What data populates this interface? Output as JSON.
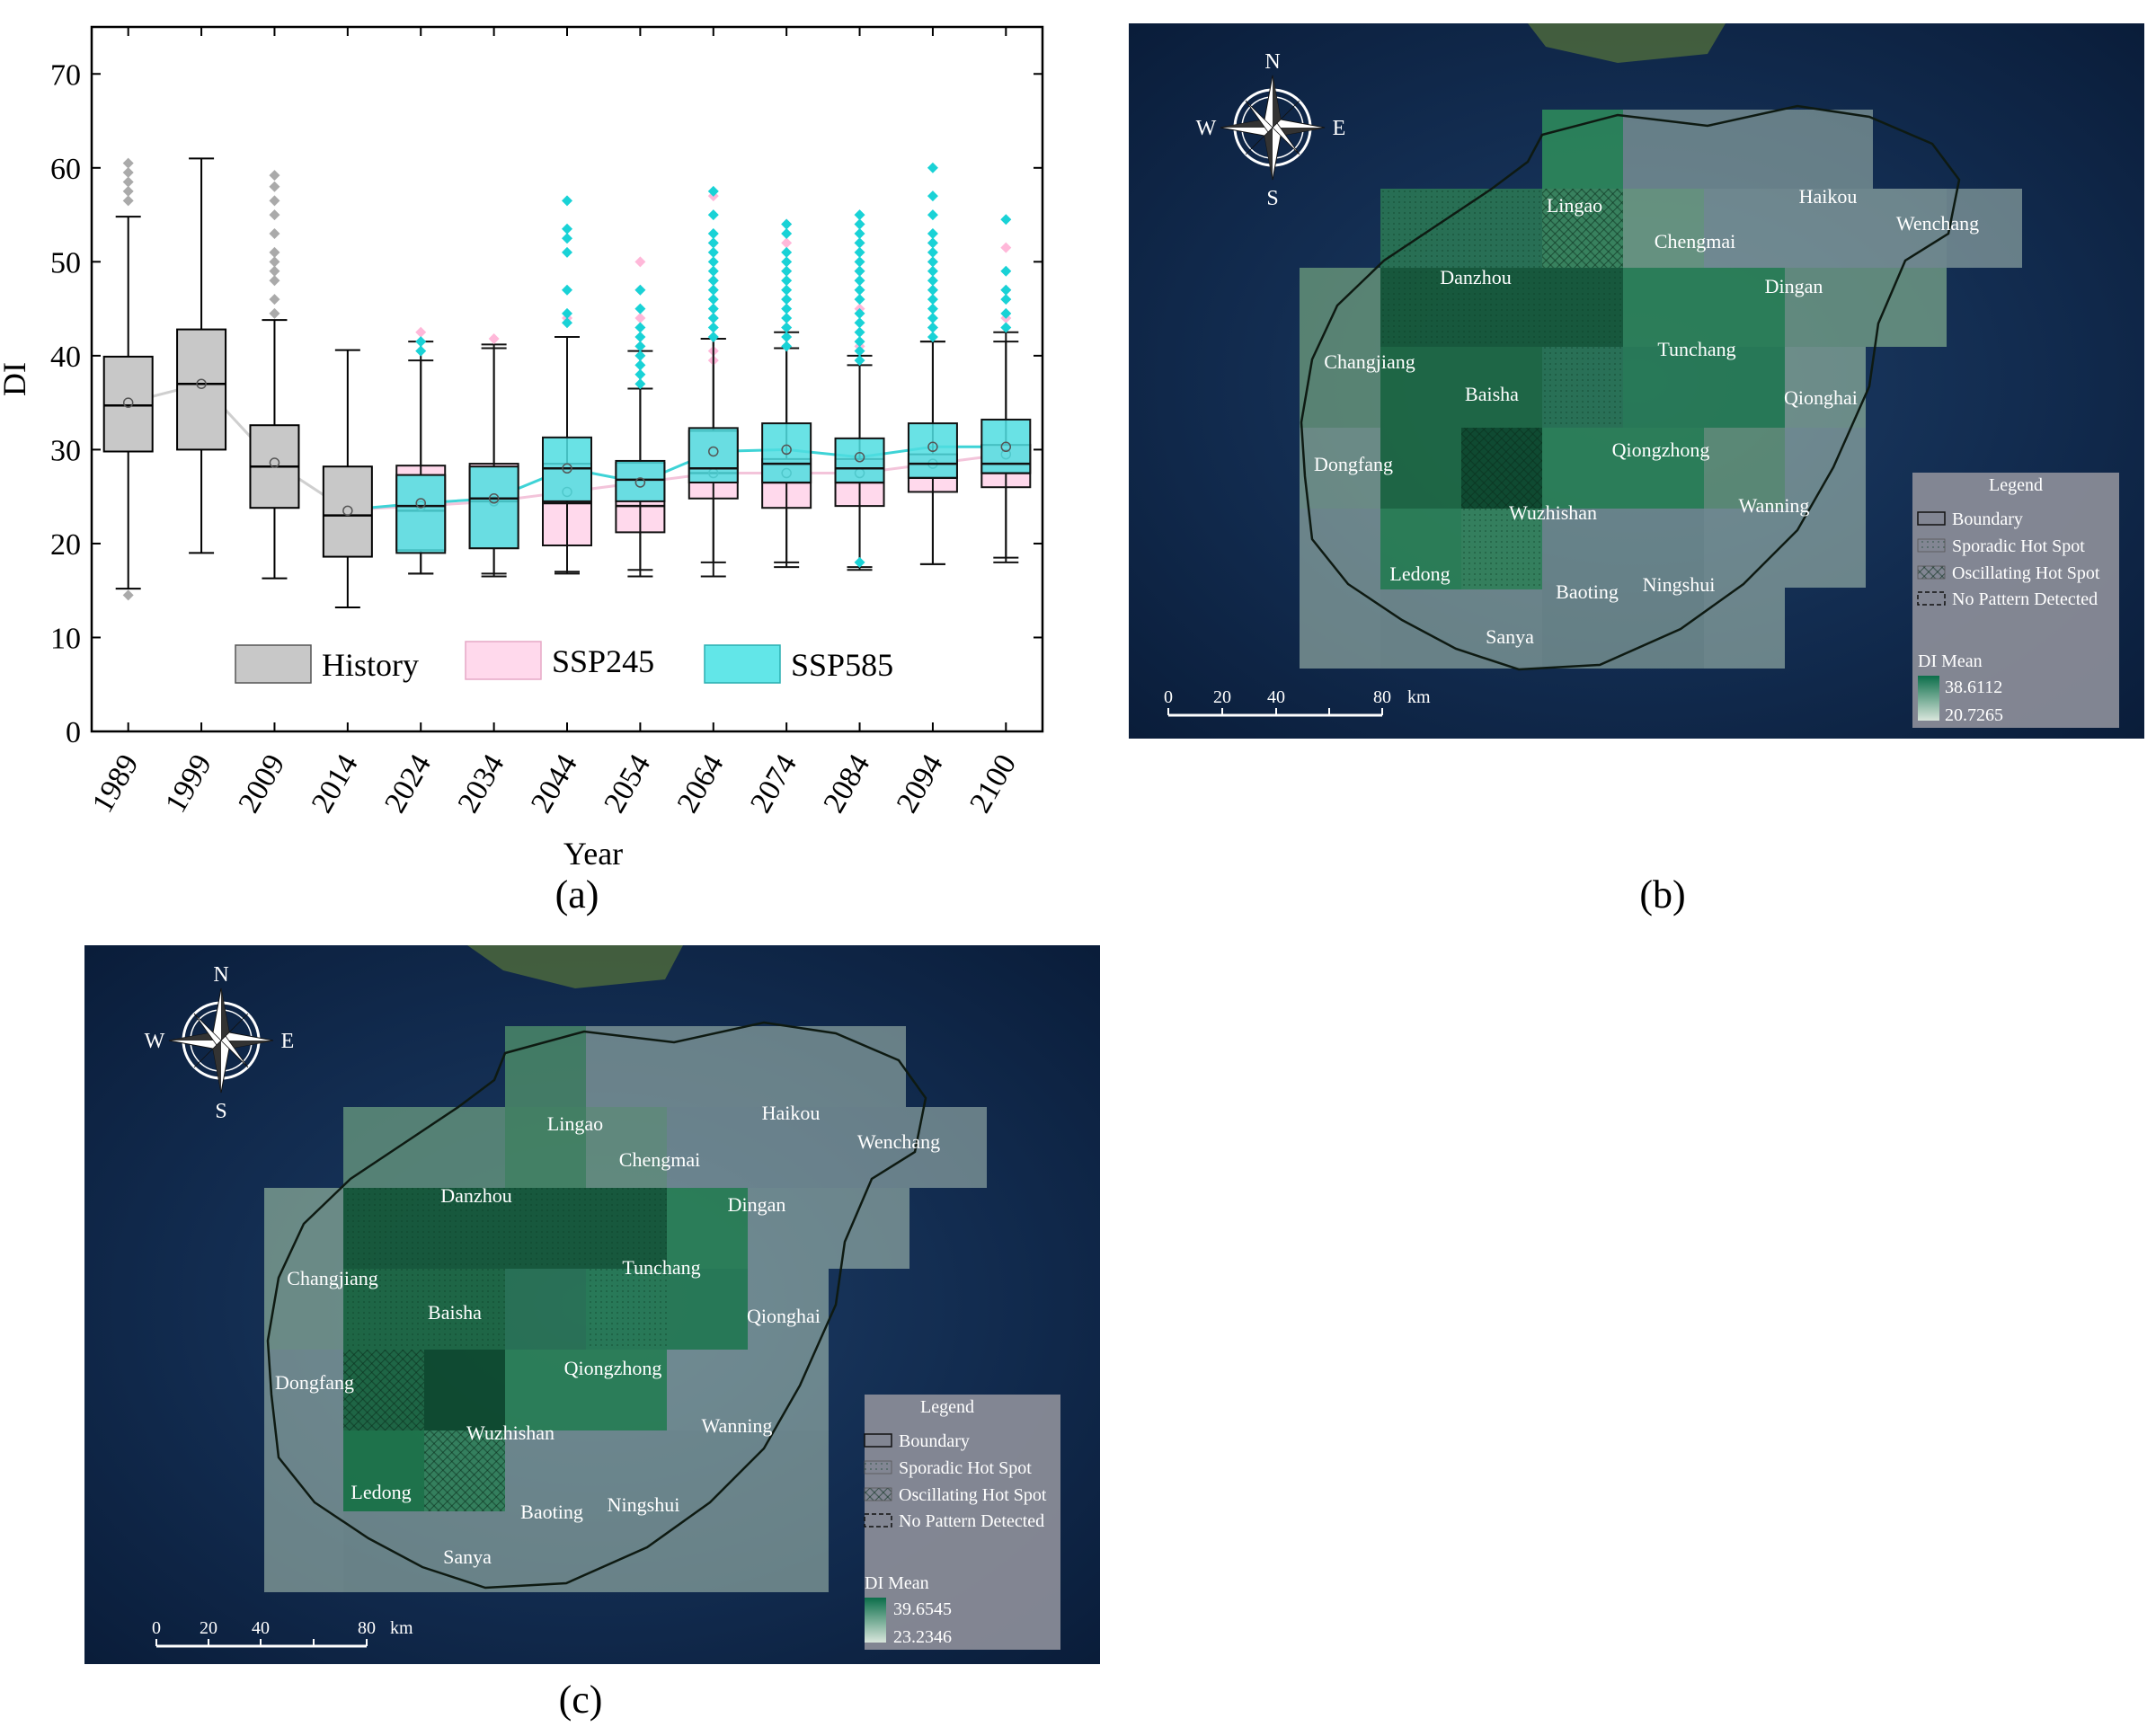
{
  "panel_labels": {
    "a": "(a)",
    "b": "(b)",
    "c": "(c)"
  },
  "chart_data": {
    "type": "box",
    "title": "",
    "xlabel": "Year",
    "ylabel": "DI",
    "ylim": [
      0,
      75
    ],
    "yticks": [
      0,
      10,
      20,
      30,
      40,
      50,
      60,
      70
    ],
    "categories": [
      "1989",
      "1999",
      "2009",
      "2014",
      "2024",
      "2034",
      "2044",
      "2054",
      "2064",
      "2074",
      "2084",
      "2094",
      "2100"
    ],
    "legend": {
      "position": "bottom-inside",
      "items": [
        "History",
        "SSP245",
        "SSP585"
      ]
    },
    "colors": {
      "History": "#c8c8c8",
      "SSP245": "#ffd9ec",
      "SSP585": "#4fdde0",
      "SSP585_line": "#3ed3d6",
      "History_line": "#cfcfcf"
    },
    "series": [
      {
        "name": "History",
        "boxes": [
          {
            "year": "1989",
            "whisker_low": 15.2,
            "q1": 29.8,
            "median": 34.7,
            "q3": 39.9,
            "whisker_high": 54.8,
            "mean": 35.0,
            "outliers": [
              14.5,
              56.5,
              57.5,
              58.5,
              59.5,
              60.5
            ]
          },
          {
            "year": "1999",
            "whisker_low": 19.0,
            "q1": 30.0,
            "median": 37.0,
            "q3": 42.8,
            "whisker_high": 61.0,
            "mean": 37.0,
            "outliers": []
          },
          {
            "year": "2009",
            "whisker_low": 16.3,
            "q1": 23.8,
            "median": 28.2,
            "q3": 32.6,
            "whisker_high": 43.8,
            "mean": 28.6,
            "outliers": [
              44.5,
              46,
              48,
              49,
              50,
              51,
              53,
              55,
              56.5,
              58,
              59.2
            ]
          },
          {
            "year": "2014",
            "whisker_low": 13.2,
            "q1": 18.6,
            "median": 23.0,
            "q3": 28.2,
            "whisker_high": 40.6,
            "mean": 23.5,
            "outliers": []
          }
        ]
      },
      {
        "name": "SSP245",
        "boxes": [
          {
            "year": "2024",
            "whisker_low": 16.8,
            "q1": 19.3,
            "median": 23.5,
            "q3": 28.3,
            "whisker_high": 41.5,
            "mean": 24.0,
            "outliers": [
              42.5
            ]
          },
          {
            "year": "2034",
            "whisker_low": 16.8,
            "q1": 19.5,
            "median": 24.5,
            "q3": 28.5,
            "whisker_high": 41.2,
            "mean": 24.5,
            "outliers": [
              41.8
            ]
          },
          {
            "year": "2044",
            "whisker_low": 17.0,
            "q1": 19.8,
            "median": 24.3,
            "q3": 28.5,
            "whisker_high": 42.0,
            "mean": 25.5,
            "outliers": [
              44
            ]
          },
          {
            "year": "2054",
            "whisker_low": 17.2,
            "q1": 21.2,
            "median": 24.0,
            "q3": 28.6,
            "whisker_high": 40.5,
            "mean": 26.5,
            "outliers": [
              41,
              44,
              47,
              50
            ]
          },
          {
            "year": "2064",
            "whisker_low": 18.0,
            "q1": 24.8,
            "median": 27.5,
            "q3": 32.0,
            "whisker_high": 41.8,
            "mean": 27.5,
            "outliers": [
              39.5,
              40.5,
              44,
              48,
              52,
              57
            ]
          },
          {
            "year": "2074",
            "whisker_low": 18.0,
            "q1": 23.8,
            "median": 26.5,
            "q3": 29.0,
            "whisker_high": 42.5,
            "mean": 27.5,
            "outliers": [
              43,
              46,
              49,
              52,
              54
            ]
          },
          {
            "year": "2084",
            "whisker_low": 17.5,
            "q1": 24.0,
            "median": 26.5,
            "q3": 29.0,
            "whisker_high": 40.0,
            "mean": 27.5,
            "outliers": [
              41,
              45,
              49,
              52,
              54
            ]
          },
          {
            "year": "2094",
            "whisker_low": 17.8,
            "q1": 25.5,
            "median": 27.0,
            "q3": 29.5,
            "whisker_high": 41.5,
            "mean": 28.5,
            "outliers": [
              43,
              47,
              50,
              52
            ]
          },
          {
            "year": "2100",
            "whisker_low": 18.5,
            "q1": 26.0,
            "median": 27.5,
            "q3": 30.5,
            "whisker_high": 42.5,
            "mean": 29.5,
            "outliers": [
              44,
              47,
              51.5
            ]
          }
        ]
      },
      {
        "name": "SSP585",
        "boxes": [
          {
            "year": "2024",
            "whisker_low": 16.8,
            "q1": 19.0,
            "median": 24.0,
            "q3": 27.3,
            "whisker_high": 39.5,
            "mean": 24.3,
            "outliers": [
              40.5,
              41.5
            ]
          },
          {
            "year": "2034",
            "whisker_low": 16.5,
            "q1": 19.5,
            "median": 24.8,
            "q3": 28.2,
            "whisker_high": 40.8,
            "mean": 24.8,
            "outliers": []
          },
          {
            "year": "2044",
            "whisker_low": 16.8,
            "q1": 24.5,
            "median": 28.0,
            "q3": 31.3,
            "whisker_high": 42.0,
            "mean": 28.0,
            "outliers": [
              43.5,
              44.5,
              47,
              51,
              52.5,
              53.5,
              56.5
            ]
          },
          {
            "year": "2054",
            "whisker_low": 16.5,
            "q1": 24.5,
            "median": 26.8,
            "q3": 28.8,
            "whisker_high": 36.5,
            "mean": 26.5,
            "outliers": [
              37,
              38,
              39,
              40,
              41,
              42,
              43,
              45,
              47
            ]
          },
          {
            "year": "2064",
            "whisker_low": 16.5,
            "q1": 26.5,
            "median": 28.0,
            "q3": 32.3,
            "whisker_high": 41.8,
            "mean": 29.8,
            "outliers": [
              42,
              43,
              44,
              45,
              46,
              47,
              48,
              49,
              50,
              51,
              52,
              53,
              55,
              57.5
            ]
          },
          {
            "year": "2074",
            "whisker_low": 17.5,
            "q1": 26.5,
            "median": 28.5,
            "q3": 32.8,
            "whisker_high": 40.8,
            "mean": 30.0,
            "outliers": [
              41,
              42,
              43,
              44,
              45,
              46,
              47,
              48,
              49,
              50,
              51,
              53,
              54
            ]
          },
          {
            "year": "2084",
            "whisker_low": 17.2,
            "q1": 26.5,
            "median": 28.0,
            "q3": 31.2,
            "whisker_high": 39.0,
            "mean": 29.2,
            "outliers": [
              18.0,
              39.5,
              40.5,
              41.5,
              42.5,
              43.5,
              44.5,
              46,
              47,
              48,
              49,
              50,
              51,
              52,
              53,
              54,
              55
            ]
          },
          {
            "year": "2094",
            "whisker_low": 17.8,
            "q1": 27.0,
            "median": 28.5,
            "q3": 32.8,
            "whisker_high": 41.5,
            "mean": 30.3,
            "outliers": [
              42,
              43,
              44,
              45,
              46,
              47,
              48,
              49,
              50,
              51,
              52,
              53,
              55,
              57,
              60
            ]
          },
          {
            "year": "2100",
            "whisker_low": 18.0,
            "q1": 27.5,
            "median": 28.5,
            "q3": 33.2,
            "whisker_high": 41.5,
            "mean": 30.3,
            "outliers": [
              43,
              44.5,
              46,
              47,
              49,
              54.5
            ]
          }
        ]
      }
    ],
    "history_mean_line": [
      35.0,
      37.0,
      28.6,
      23.5
    ],
    "ssp585_mean_line": [
      23.6,
      24.3,
      24.8,
      28.0,
      26.5,
      29.8,
      30.0,
      29.2,
      30.3,
      30.3
    ],
    "ssp245_mean_line": [
      23.6,
      24.0,
      24.5,
      25.5,
      26.5,
      27.5,
      27.5,
      27.5,
      28.5,
      29.5
    ]
  },
  "maps": {
    "b": {
      "compass": {
        "n": "N",
        "s": "S",
        "e": "E",
        "w": "W"
      },
      "labels": [
        "Lingao",
        "Haikou",
        "Wenchang",
        "Chengmai",
        "Danzhou",
        "Dingan",
        "Tunchang",
        "Changjiang",
        "Baisha",
        "Qionghai",
        "Qiongzhong",
        "Dongfang",
        "Wuzhishan",
        "Wanning",
        "Ledong",
        "Baoting",
        "Ningshui",
        "Sanya"
      ],
      "scale": {
        "ticks": [
          "0",
          "20",
          "40",
          "80"
        ],
        "unit": "km"
      },
      "legend": {
        "title": "Legend",
        "items": [
          "Boundary",
          "Sporadic Hot Spot",
          "Oscillating Hot Spot",
          "No Pattern Detected"
        ],
        "di_title": "DI Mean",
        "max": "38.6112",
        "min": "20.7265"
      }
    },
    "c": {
      "compass": {
        "n": "N",
        "s": "S",
        "e": "E",
        "w": "W"
      },
      "labels": [
        "Lingao",
        "Haikou",
        "Wenchang",
        "Chengmai",
        "Danzhou",
        "Dingan",
        "Tunchang",
        "Changjiang",
        "Baisha",
        "Qionghai",
        "Qiongzhong",
        "Dongfang",
        "Wuzhishan",
        "Wanning",
        "Ledong",
        "Baoting",
        "Ningshui",
        "Sanya"
      ],
      "scale": {
        "ticks": [
          "0",
          "20",
          "40",
          "80"
        ],
        "unit": "km"
      },
      "legend": {
        "title": "Legend",
        "items": [
          "Boundary",
          "Sporadic Hot Spot",
          "Oscillating Hot Spot",
          "No Pattern Detected"
        ],
        "di_title": "DI Mean",
        "max": "39.6545",
        "min": "23.2346"
      }
    }
  }
}
